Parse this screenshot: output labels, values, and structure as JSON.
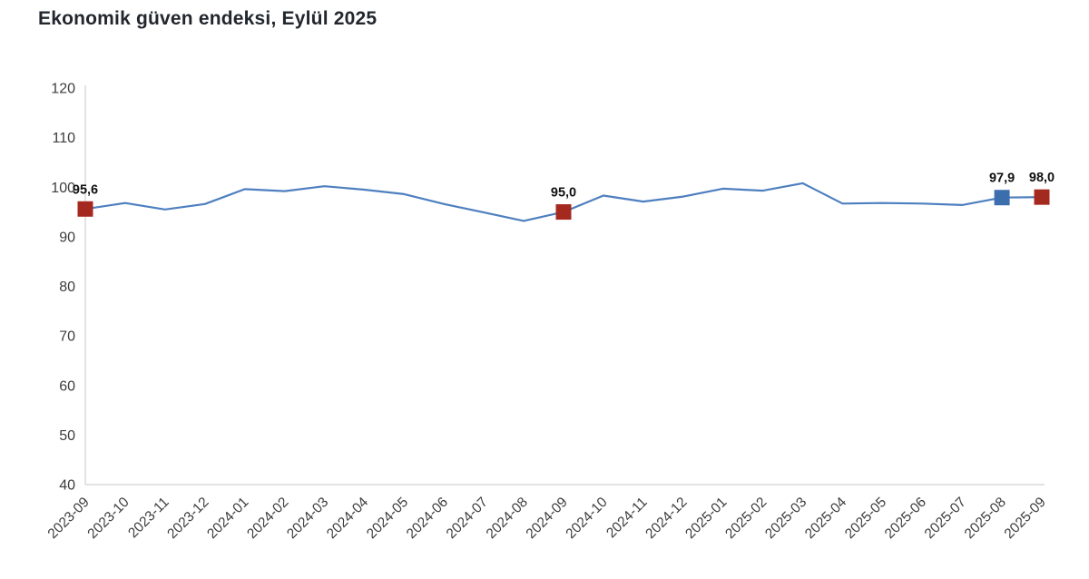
{
  "header": {
    "title": "Ekonomik güven endeksi, Eylül 2025"
  },
  "colors": {
    "line": "#4e7fbf",
    "marker_red": "#a42a20",
    "marker_blue": "#3c6eae",
    "axis_line": "#d9d9d9",
    "tick_text": "#3d3d3d",
    "title_text": "#22272e",
    "data_label_text": "#111111",
    "background": "#ffffff"
  },
  "chart_data": {
    "type": "line",
    "title": "Ekonomik güven endeksi, Eylül 2025",
    "xlabel": "",
    "ylabel": "",
    "ylim": [
      40,
      120
    ],
    "yticks": [
      120,
      110,
      100,
      90,
      80,
      70,
      60,
      50,
      40
    ],
    "grid": false,
    "legend_position": "none",
    "categories": [
      "2023-09",
      "2023-10",
      "2023-11",
      "2023-12",
      "2024-01",
      "2024-02",
      "2024-03",
      "2024-04",
      "2024-05",
      "2024-06",
      "2024-07",
      "2024-08",
      "2024-09",
      "2024-10",
      "2024-11",
      "2024-12",
      "2025-01",
      "2025-02",
      "2025-03",
      "2025-04",
      "2025-05",
      "2025-06",
      "2025-07",
      "2025-08",
      "2025-09"
    ],
    "values": [
      95.6,
      96.8,
      95.5,
      96.6,
      99.6,
      99.2,
      100.2,
      99.5,
      98.6,
      96.6,
      94.9,
      93.2,
      95.0,
      98.3,
      97.1,
      98.1,
      99.7,
      99.3,
      100.8,
      96.7,
      96.8,
      96.7,
      96.4,
      97.9,
      98.0
    ],
    "annotated_points": [
      {
        "category": "2023-09",
        "value": 95.6,
        "label": "95,6",
        "color": "#a42a20"
      },
      {
        "category": "2024-09",
        "value": 95.0,
        "label": "95,0",
        "color": "#a42a20"
      },
      {
        "category": "2025-08",
        "value": 97.9,
        "label": "97,9",
        "color": "#3c6eae"
      },
      {
        "category": "2025-09",
        "value": 98.0,
        "label": "98,0",
        "color": "#a42a20"
      }
    ]
  }
}
